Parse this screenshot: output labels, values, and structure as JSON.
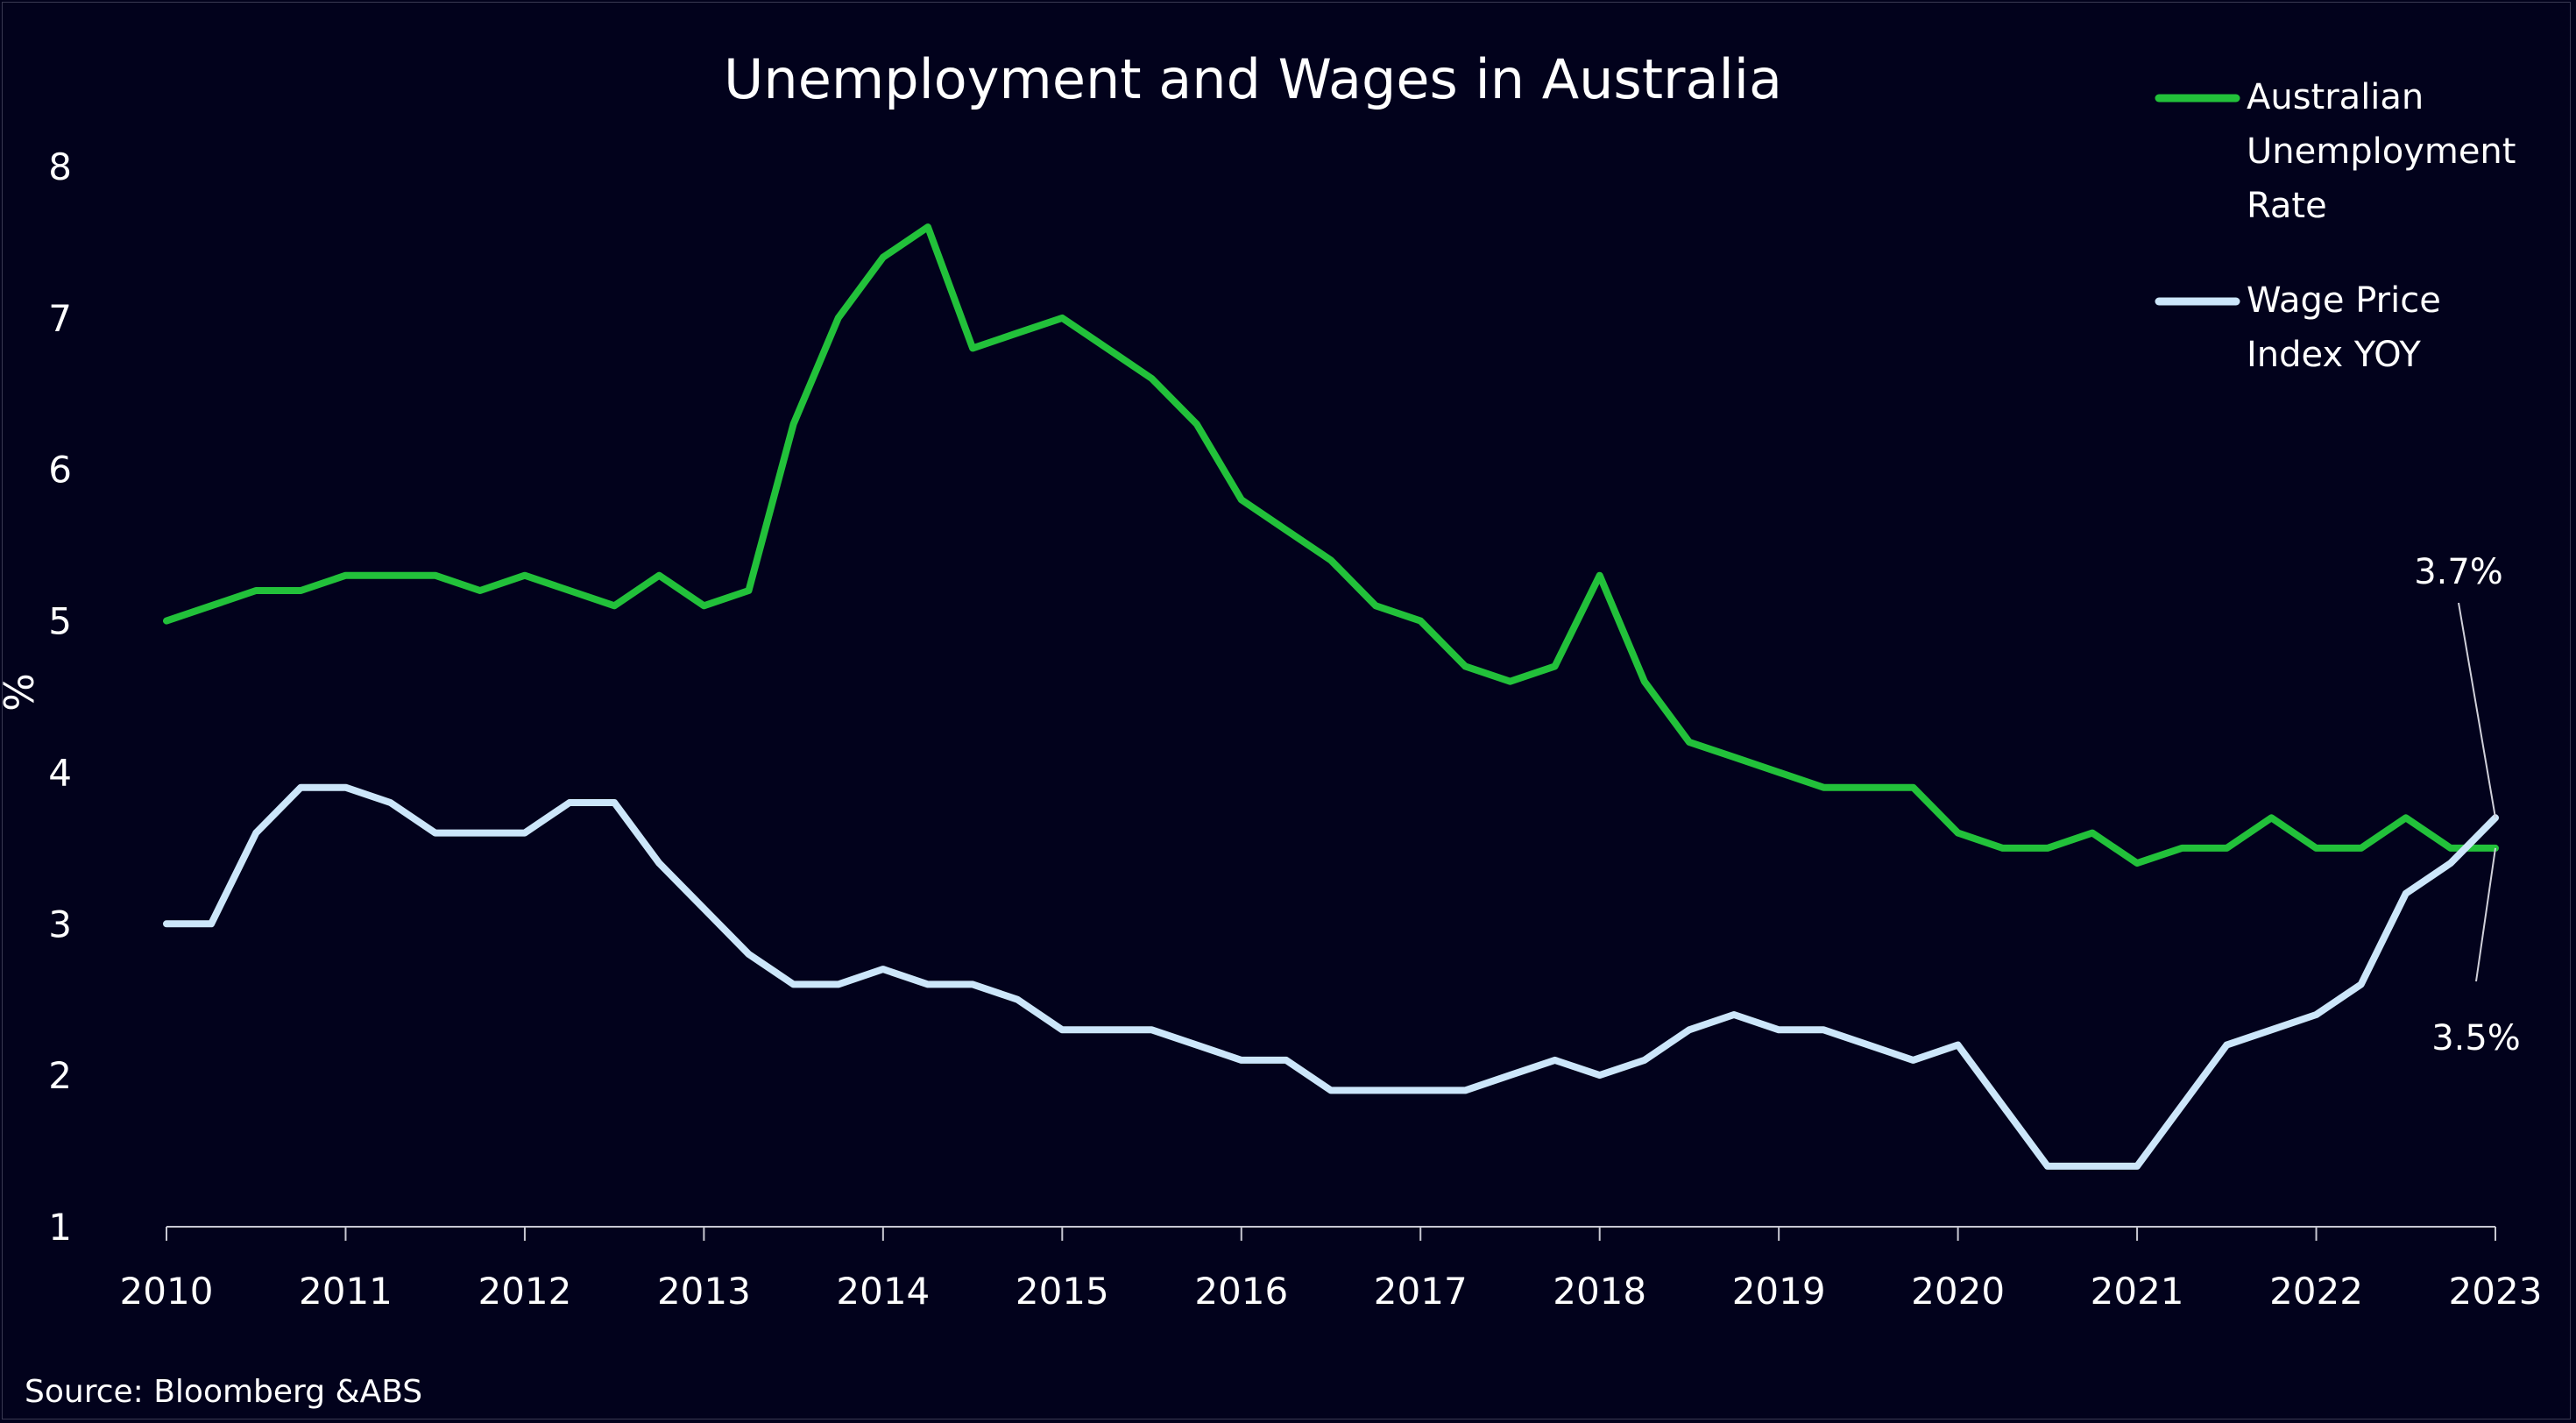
{
  "chart_data": {
    "type": "line",
    "title": "Unemployment and Wages in Australia",
    "xlabel": "",
    "ylabel": "%",
    "x_tick_labels": [
      "2010",
      "2011",
      "2012",
      "2013",
      "2014",
      "2015",
      "2016",
      "2017",
      "2018",
      "2019",
      "2020",
      "2021",
      "2022",
      "2023"
    ],
    "y_tick_labels": [
      "1",
      "2",
      "3",
      "4",
      "5",
      "6",
      "7",
      "8"
    ],
    "xlim": [
      2010,
      2023
    ],
    "ylim": [
      1,
      8
    ],
    "grid": false,
    "legend_position": "top-right",
    "series": [
      {
        "name": "Australian Unemployment Rate",
        "color": "#22c13a",
        "x": [
          2010.0,
          2010.25,
          2010.5,
          2010.75,
          2011.0,
          2011.25,
          2011.5,
          2011.75,
          2012.0,
          2012.25,
          2012.5,
          2012.75,
          2013.0,
          2013.25,
          2013.5,
          2013.75,
          2014.0,
          2014.25,
          2014.5,
          2014.75,
          2015.0,
          2015.25,
          2015.5,
          2015.75,
          2016.0,
          2016.25,
          2016.5,
          2016.75,
          2017.0,
          2017.25,
          2017.5,
          2017.75,
          2018.0,
          2018.25,
          2018.5,
          2018.75,
          2019.0,
          2019.25,
          2019.5,
          2019.75,
          2020.0,
          2020.25,
          2020.5,
          2020.75,
          2021.0,
          2021.25,
          2021.5,
          2021.75,
          2022.0,
          2022.25,
          2022.5,
          2022.75,
          2023.0
        ],
        "values": [
          5.0,
          5.1,
          5.2,
          5.2,
          5.3,
          5.3,
          5.3,
          5.2,
          5.3,
          5.2,
          5.1,
          5.3,
          5.1,
          5.2,
          6.3,
          7.0,
          7.4,
          7.6,
          6.8,
          6.9,
          7.0,
          6.8,
          6.6,
          6.3,
          5.8,
          5.6,
          5.4,
          5.1,
          5.0,
          4.7,
          4.6,
          4.7,
          5.3,
          4.6,
          4.2,
          4.1,
          4.0,
          3.9,
          3.9,
          3.9,
          3.6,
          3.5,
          3.5,
          3.6,
          3.4,
          3.5,
          3.5,
          3.7,
          3.5,
          3.5,
          3.7,
          3.5,
          3.5
        ]
      },
      {
        "name": "Wage Price Index YOY",
        "color": "#cce6fa",
        "x": [
          2010.0,
          2010.25,
          2010.5,
          2010.75,
          2011.0,
          2011.25,
          2011.5,
          2011.75,
          2012.0,
          2012.25,
          2012.5,
          2012.75,
          2013.0,
          2013.25,
          2013.5,
          2013.75,
          2014.0,
          2014.25,
          2014.5,
          2014.75,
          2015.0,
          2015.25,
          2015.5,
          2015.75,
          2016.0,
          2016.25,
          2016.5,
          2016.75,
          2017.0,
          2017.25,
          2017.5,
          2017.75,
          2018.0,
          2018.25,
          2018.5,
          2018.75,
          2019.0,
          2019.25,
          2019.5,
          2019.75,
          2020.0,
          2020.25,
          2020.5,
          2020.75,
          2021.0,
          2021.25,
          2021.5,
          2021.75,
          2022.0,
          2022.25,
          2022.5,
          2022.75,
          2023.0
        ],
        "values": [
          3.0,
          3.0,
          3.6,
          3.9,
          3.9,
          3.8,
          3.6,
          3.6,
          3.6,
          3.8,
          3.8,
          3.4,
          3.1,
          2.8,
          2.6,
          2.6,
          2.7,
          2.6,
          2.6,
          2.5,
          2.3,
          2.3,
          2.3,
          2.2,
          2.1,
          2.1,
          1.9,
          1.9,
          1.9,
          1.9,
          2.0,
          2.1,
          2.0,
          2.1,
          2.3,
          2.4,
          2.3,
          2.3,
          2.2,
          2.1,
          2.2,
          1.8,
          1.4,
          1.4,
          1.4,
          1.8,
          2.2,
          2.3,
          2.4,
          2.6,
          3.2,
          3.4,
          3.7
        ]
      }
    ],
    "annotations": [
      {
        "text": "3.7%",
        "x": 2023.0,
        "y": 3.7
      },
      {
        "text": "3.5%",
        "x": 2023.0,
        "y": 3.5
      }
    ],
    "source": "Source: Bloomberg &ABS"
  }
}
